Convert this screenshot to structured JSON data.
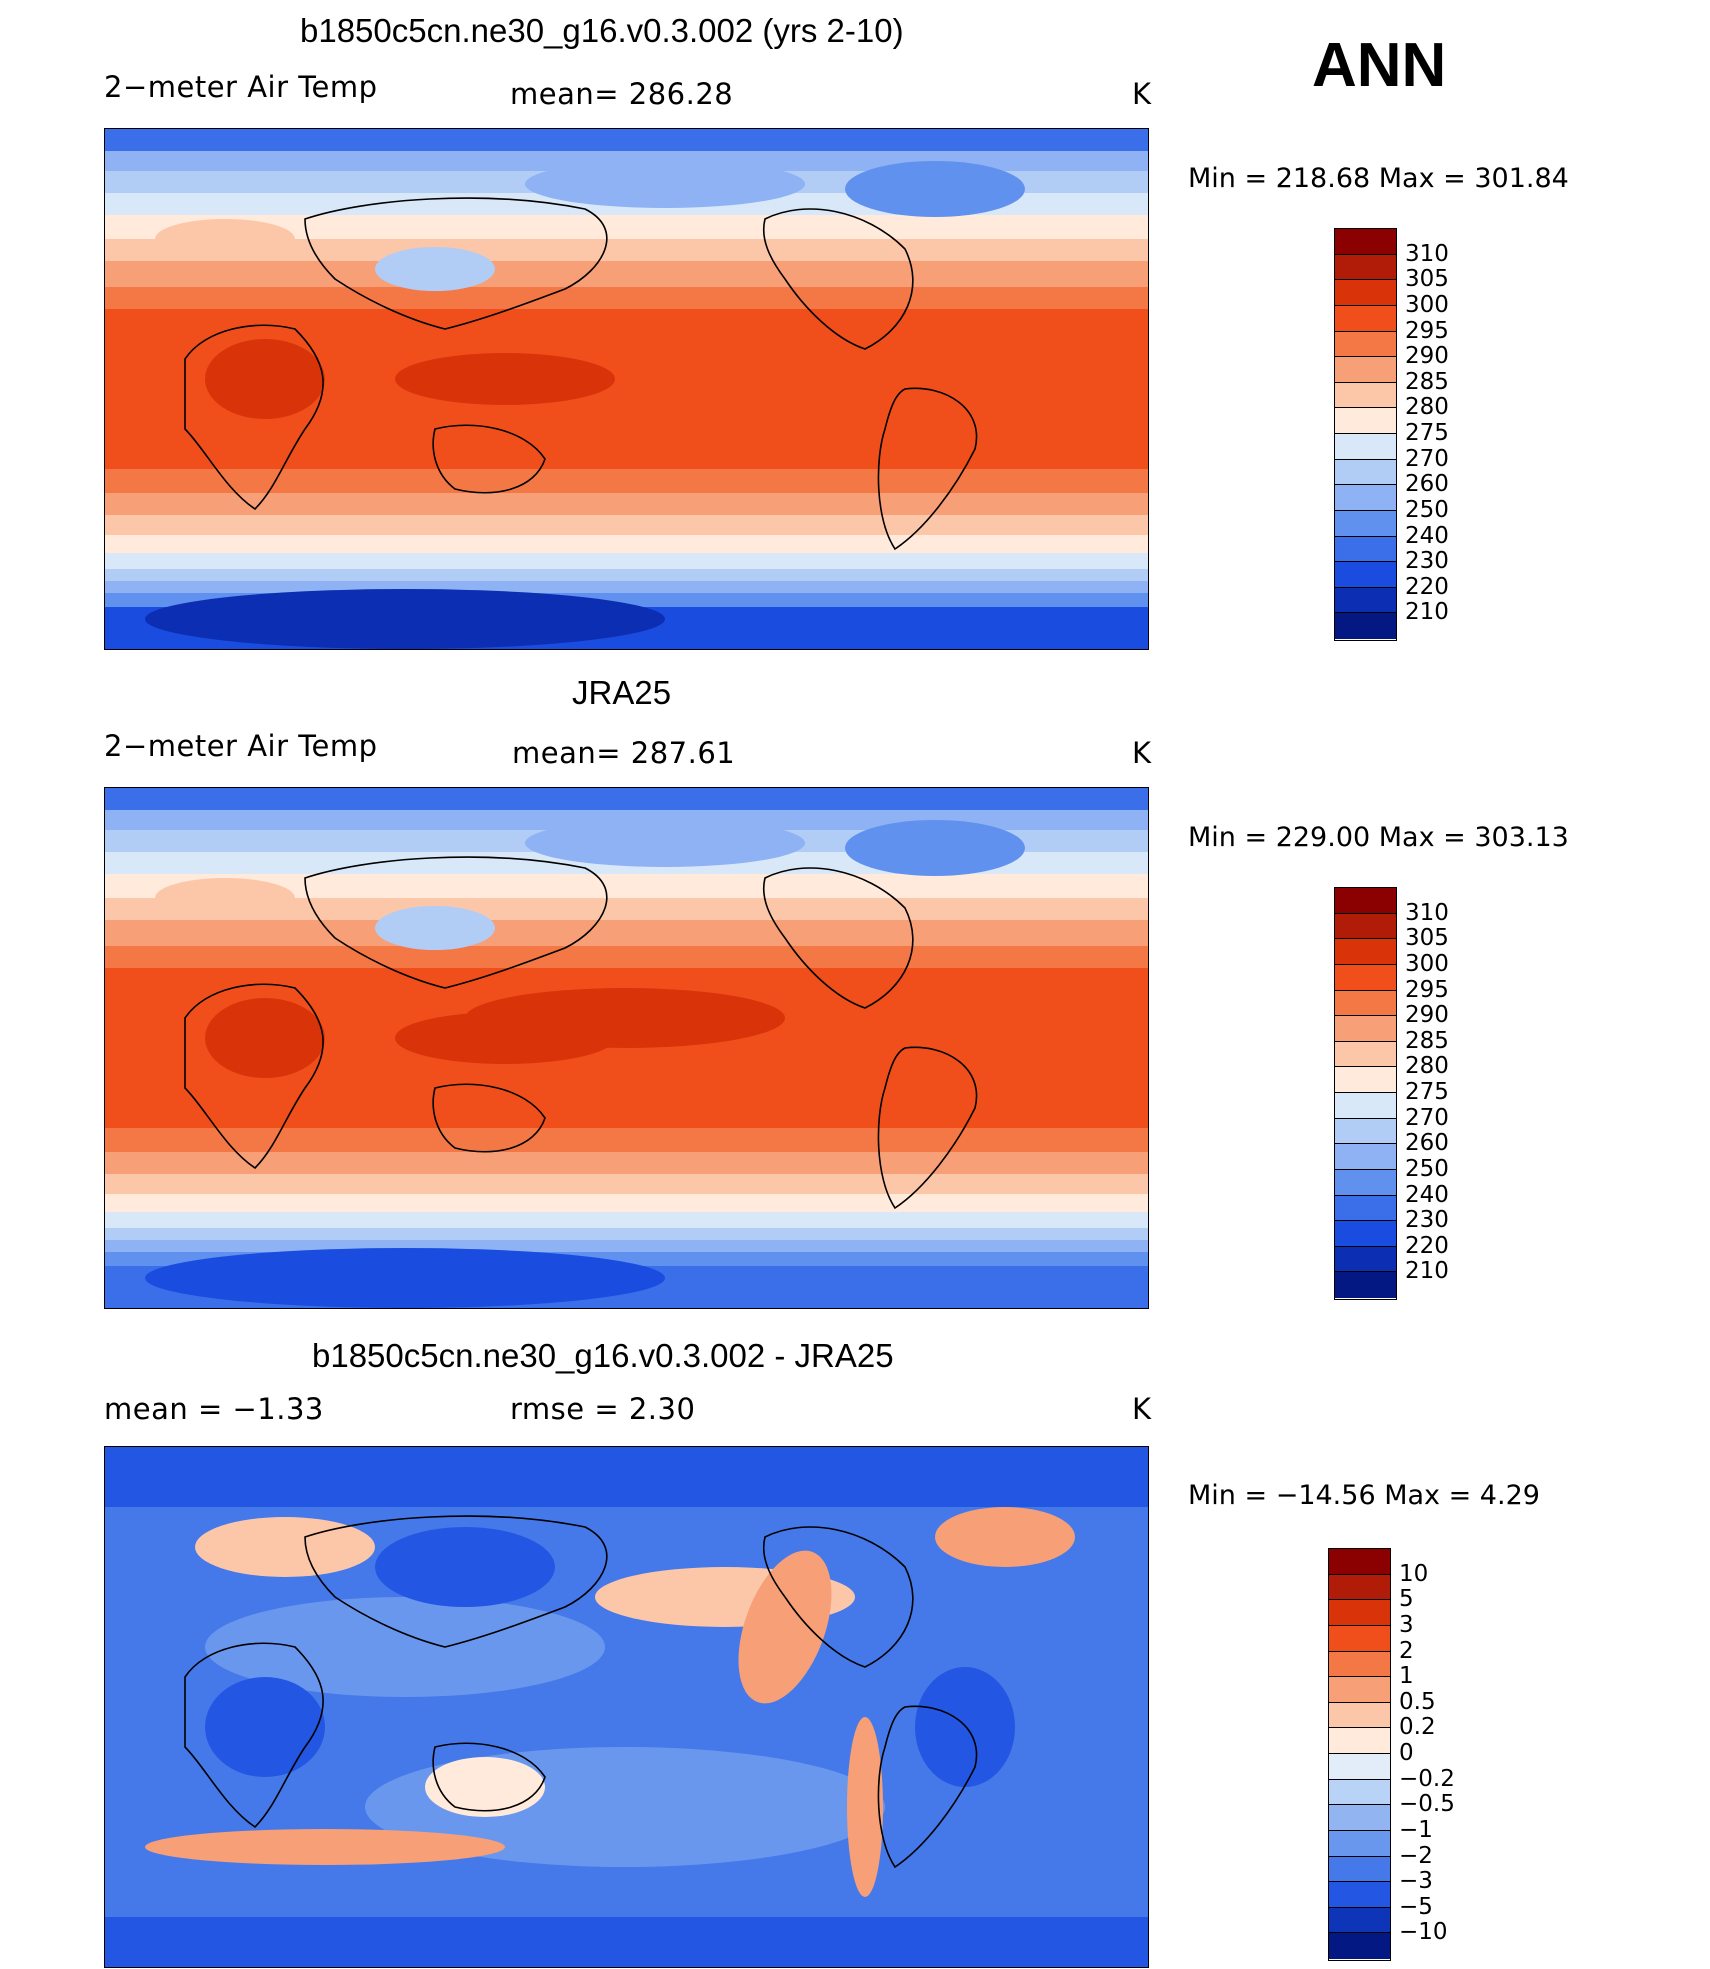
{
  "season": "ANN",
  "panels": [
    {
      "title": "b1850c5cn.ne30_g16.v0.3.002 (yrs 2-10)",
      "left_text": "2−meter Air Temp",
      "center_text": "mean=  286.28",
      "units": "K",
      "minmax": "Min  =  218.68  Max  =  301.84",
      "kind": "abs",
      "colorbar_labels": [
        "310",
        "305",
        "300",
        "295",
        "290",
        "285",
        "280",
        "275",
        "270",
        "260",
        "250",
        "240",
        "230",
        "220",
        "210"
      ]
    },
    {
      "title": "JRA25",
      "left_text": "2−meter Air Temp",
      "center_text": "mean=  287.61",
      "units": "K",
      "minmax": "Min  =  229.00  Max  =  303.13",
      "kind": "abs",
      "colorbar_labels": [
        "310",
        "305",
        "300",
        "295",
        "290",
        "285",
        "280",
        "275",
        "270",
        "260",
        "250",
        "240",
        "230",
        "220",
        "210"
      ]
    },
    {
      "title": "b1850c5cn.ne30_g16.v0.3.002 - JRA25",
      "left_text": "mean  =     −1.33",
      "center_text": "rmse  =     2.30",
      "units": "K",
      "minmax": "Min  =  −14.56  Max  =       4.29",
      "kind": "diff",
      "colorbar_labels": [
        "10",
        "5",
        "3",
        "2",
        "1",
        "0.5",
        "0.2",
        "0",
        "−0.2",
        "−0.5",
        "−1",
        "−2",
        "−3",
        "−5",
        "−10"
      ]
    }
  ],
  "palettes": {
    "abs": [
      "#8b0000",
      "#b01c07",
      "#d93409",
      "#f04f1c",
      "#f47846",
      "#f79f76",
      "#fcc7a8",
      "#ffeadc",
      "#d9e8f8",
      "#b1cdf6",
      "#8eb2f3",
      "#6191ee",
      "#3b6ee9",
      "#1a4ce0",
      "#0b2eb3",
      "#041884"
    ],
    "diff": [
      "#8b0000",
      "#b01c07",
      "#d93409",
      "#f04f1c",
      "#f47846",
      "#f79f76",
      "#fcc7a8",
      "#ffeadc",
      "#e2edf9",
      "#b9d3f6",
      "#92b5f2",
      "#6a97ee",
      "#4579ea",
      "#2356e3",
      "#0e34b8",
      "#041884"
    ]
  }
}
